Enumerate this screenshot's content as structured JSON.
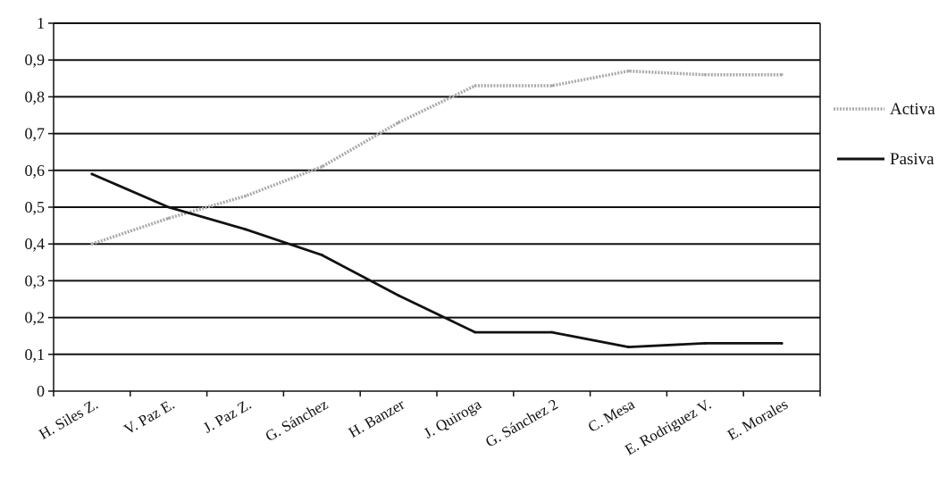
{
  "chart_data": {
    "type": "line",
    "title": "",
    "xlabel": "",
    "ylabel": "",
    "categories": [
      "H. Siles Z.",
      "V. Paz E.",
      "J. Paz Z.",
      "G. Sánchez",
      "H. Banzer",
      "J. Quiroga",
      "G. Sánchez 2",
      "C. Mesa",
      "E. Rodriguez V.",
      "E. Morales"
    ],
    "yticks": [
      "0",
      "0,1",
      "0,2",
      "0,3",
      "0,4",
      "0,5",
      "0,6",
      "0,7",
      "0,8",
      "0,9",
      "1"
    ],
    "ylim": [
      0,
      1
    ],
    "grid": true,
    "legend_position": "right",
    "series": [
      {
        "name": "Activa",
        "color": "#aaaaaa",
        "style": "dotted-gray",
        "values": [
          0.4,
          0.47,
          0.53,
          0.61,
          0.73,
          0.83,
          0.83,
          0.87,
          0.86,
          0.86
        ]
      },
      {
        "name": "Pasiva",
        "color": "#111111",
        "style": "solid",
        "values": [
          0.59,
          0.5,
          0.44,
          0.37,
          0.26,
          0.16,
          0.16,
          0.12,
          0.13,
          0.13
        ]
      }
    ]
  }
}
